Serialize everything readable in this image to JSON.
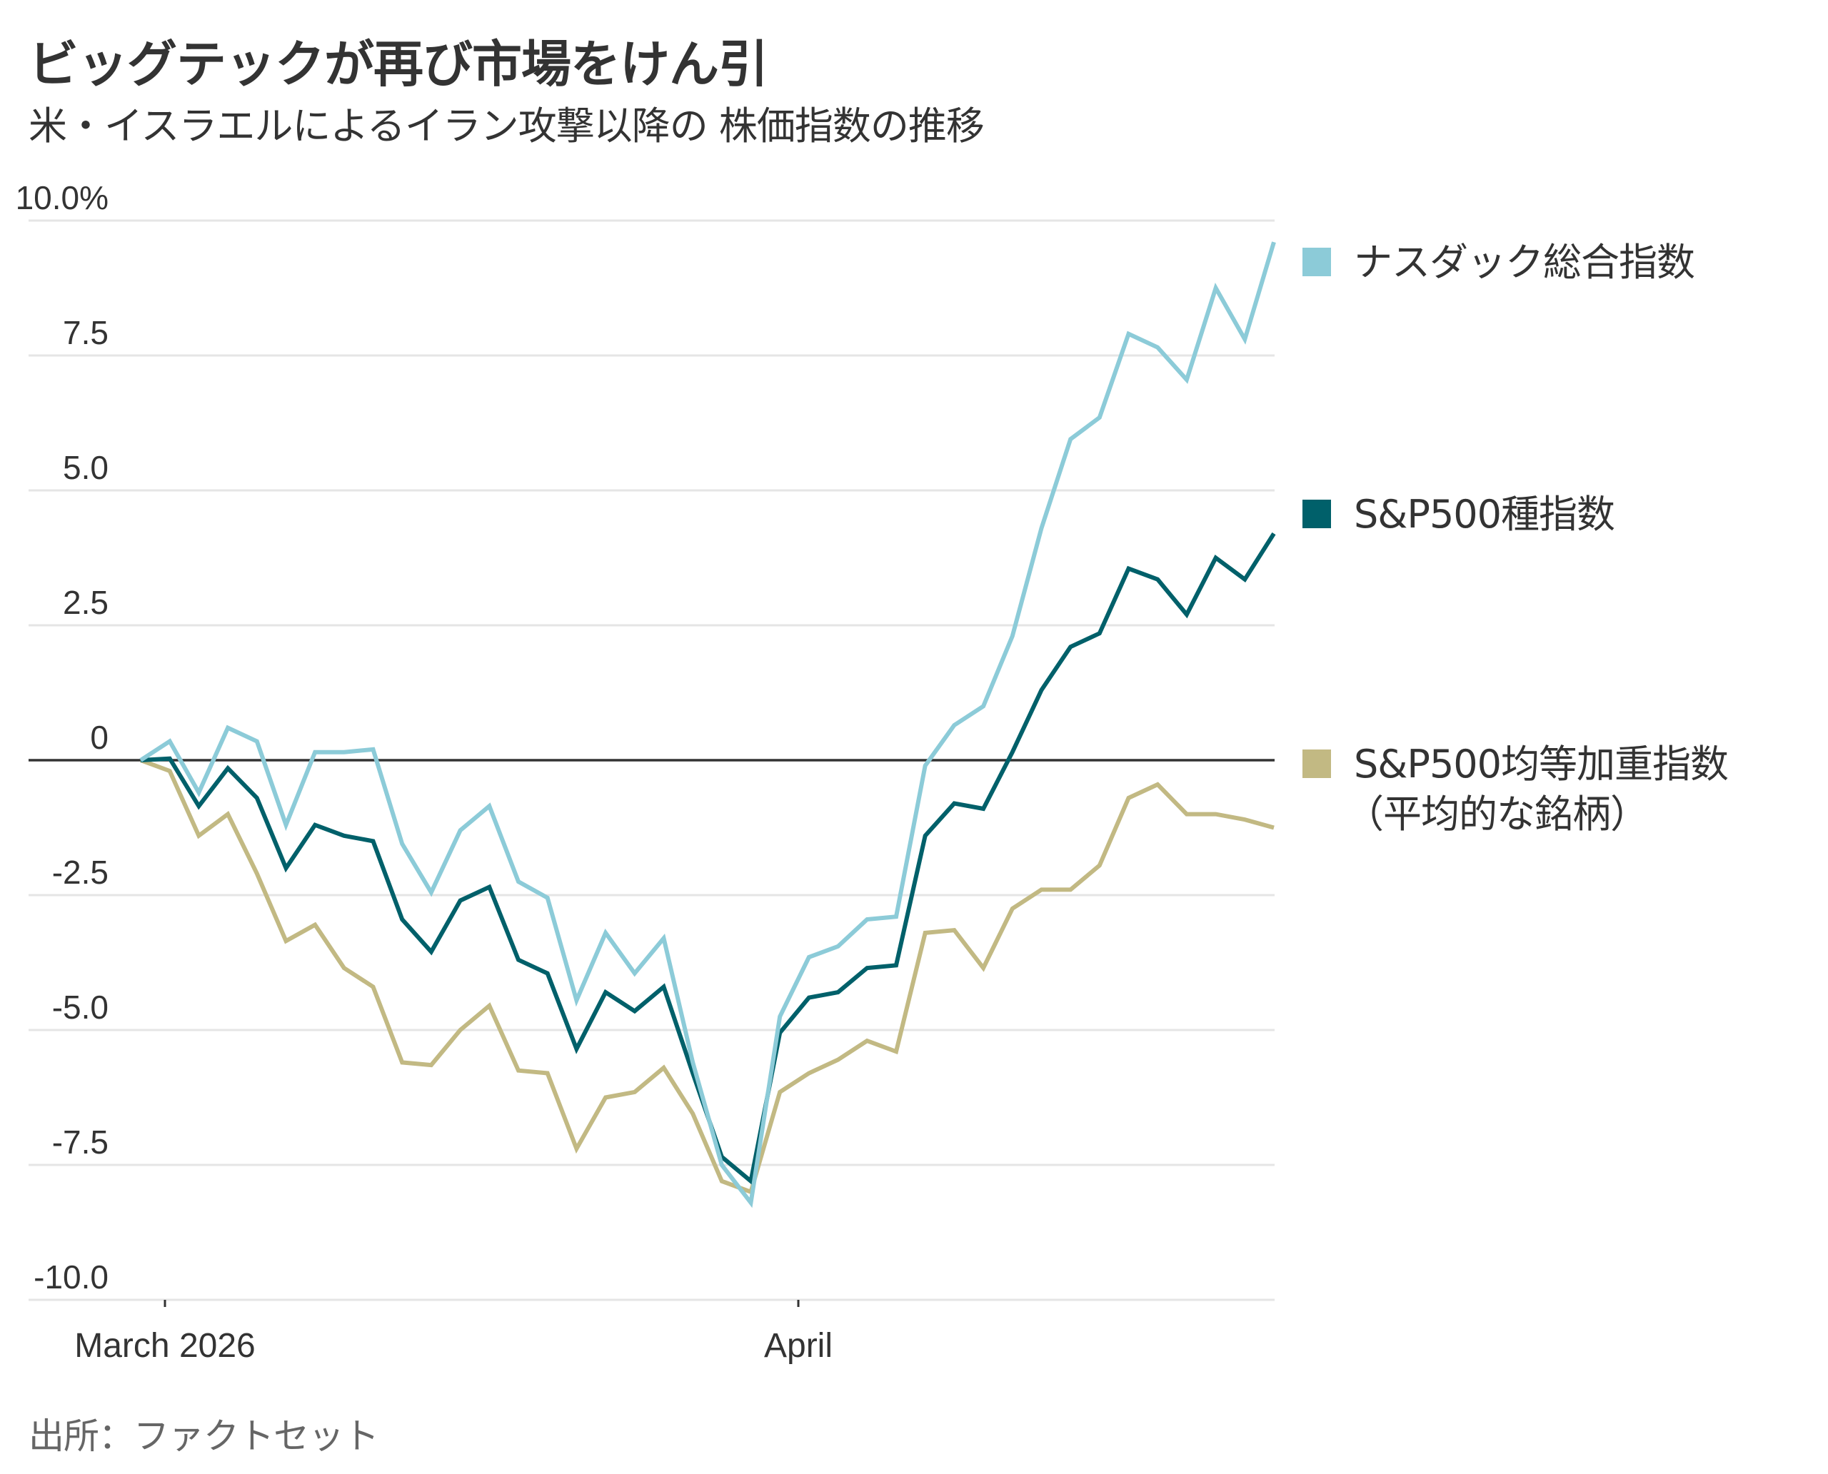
{
  "title": "ビッグテックが再び市場をけん引",
  "subtitle": "米・イスラエルによるイラン攻撃以降の 株価指数の推移",
  "source": "出所：ファクトセット",
  "colors": {
    "nasdaq": "#8ccbd8",
    "sp500": "#00606a",
    "equal_weight": "#c2b983",
    "grid": "#e5e5e5",
    "zero_line": "#333333",
    "text": "#333333",
    "source_text": "#666666"
  },
  "chart_data": {
    "type": "line",
    "title": "ビッグテックが再び市場をけん引",
    "subtitle": "米・イスラエルによるイラン攻撃以降の 株価指数の推移",
    "xlabel": "",
    "ylabel": "",
    "ylim": [
      -10,
      10
    ],
    "yticks": [
      10,
      7.5,
      5,
      2.5,
      0,
      -2.5,
      -5,
      -7.5,
      -10
    ],
    "ytick_labels": [
      "10.0%",
      "7.5",
      "5.0",
      "2.5",
      "0",
      "-2.5",
      "-5.0",
      "-7.5",
      "-10.0"
    ],
    "xticks": [
      {
        "index": 1,
        "label": "March 2026"
      },
      {
        "index": 23,
        "label": "April"
      }
    ],
    "grid": true,
    "legend_position": "right",
    "point_count": 40,
    "series": [
      {
        "name": "ナスダック総合指数",
        "color_key": "nasdaq",
        "values": [
          0,
          0.35,
          -0.6,
          0.6,
          0.35,
          -1.2,
          0.15,
          0.15,
          0.2,
          -1.55,
          -2.45,
          -1.3,
          -0.85,
          -2.25,
          -2.55,
          -4.45,
          -3.2,
          -3.95,
          -3.3,
          -5.6,
          -7.5,
          -8.2,
          -4.75,
          -3.65,
          -3.45,
          -2.95,
          -2.9,
          -0.1,
          0.65,
          1.0,
          2.3,
          4.3,
          5.95,
          6.35,
          7.9,
          7.65,
          7.05,
          8.75,
          7.8,
          9.6
        ]
      },
      {
        "name": "S&P500種指数",
        "color_key": "sp500",
        "values": [
          0,
          0.03,
          -0.85,
          -0.15,
          -0.7,
          -2.0,
          -1.2,
          -1.4,
          -1.5,
          -2.95,
          -3.55,
          -2.6,
          -2.35,
          -3.7,
          -3.95,
          -5.35,
          -4.3,
          -4.65,
          -4.2,
          -5.8,
          -7.35,
          -7.8,
          -5.05,
          -4.4,
          -4.3,
          -3.85,
          -3.8,
          -1.4,
          -0.8,
          -0.9,
          0.15,
          1.3,
          2.1,
          2.35,
          3.55,
          3.35,
          2.7,
          3.75,
          3.35,
          4.2
        ]
      },
      {
        "name": "S&P500均等加重指数",
        "name_line2": "（平均的な銘柄）",
        "color_key": "equal_weight",
        "values": [
          0,
          -0.2,
          -1.4,
          -1.0,
          -2.1,
          -3.35,
          -3.05,
          -3.85,
          -4.2,
          -5.6,
          -5.65,
          -5.0,
          -4.55,
          -5.75,
          -5.8,
          -7.2,
          -6.25,
          -6.15,
          -5.7,
          -6.55,
          -7.8,
          -8.0,
          -6.15,
          -5.8,
          -5.55,
          -5.2,
          -5.4,
          -3.2,
          -3.15,
          -3.85,
          -2.75,
          -2.4,
          -2.4,
          -1.95,
          -0.7,
          -0.45,
          -1.0,
          -1.0,
          -1.1,
          -1.25
        ]
      }
    ]
  }
}
